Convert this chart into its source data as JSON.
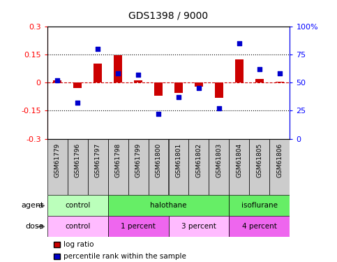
{
  "title": "GDS1398 / 9000",
  "samples": [
    "GSM61779",
    "GSM61796",
    "GSM61797",
    "GSM61798",
    "GSM61799",
    "GSM61800",
    "GSM61801",
    "GSM61802",
    "GSM61803",
    "GSM61804",
    "GSM61805",
    "GSM61806"
  ],
  "log_ratio": [
    0.01,
    -0.03,
    0.1,
    0.145,
    0.01,
    -0.07,
    -0.055,
    -0.02,
    -0.08,
    0.125,
    0.02,
    0.005
  ],
  "percentile_rank": [
    52,
    32,
    80,
    58,
    57,
    22,
    37,
    45,
    27,
    85,
    62,
    58
  ],
  "ylim_left": [
    -0.3,
    0.3
  ],
  "ylim_right": [
    0,
    100
  ],
  "yticks_left": [
    -0.3,
    -0.15,
    0.0,
    0.15,
    0.3
  ],
  "ytick_labels_left": [
    "-0.3",
    "-0.15",
    "0",
    "0.15",
    "0.3"
  ],
  "yticks_right": [
    0,
    25,
    50,
    75,
    100
  ],
  "ytick_labels_right": [
    "0",
    "25",
    "50",
    "75",
    "100%"
  ],
  "bar_color": "#cc0000",
  "scatter_color": "#0000cc",
  "agent_labels": [
    {
      "label": "control",
      "start": 0,
      "end": 3,
      "color": "#bbffbb"
    },
    {
      "label": "halothane",
      "start": 3,
      "end": 9,
      "color": "#66ee66"
    },
    {
      "label": "isoflurane",
      "start": 9,
      "end": 12,
      "color": "#66ee66"
    }
  ],
  "dose_labels": [
    {
      "label": "control",
      "start": 0,
      "end": 3,
      "color": "#ffbbff"
    },
    {
      "label": "1 percent",
      "start": 3,
      "end": 6,
      "color": "#ee66ee"
    },
    {
      "label": "3 percent",
      "start": 6,
      "end": 9,
      "color": "#ffbbff"
    },
    {
      "label": "4 percent",
      "start": 9,
      "end": 12,
      "color": "#ee66ee"
    }
  ],
  "sample_bg_color": "#cccccc",
  "legend_bar_color": "#cc0000",
  "legend_scatter_color": "#0000cc",
  "row_label_agent": "agent",
  "row_label_dose": "dose",
  "hline_dotted_color": "#000000",
  "hline_zero_color": "#cc0000",
  "bar_width": 0.4
}
